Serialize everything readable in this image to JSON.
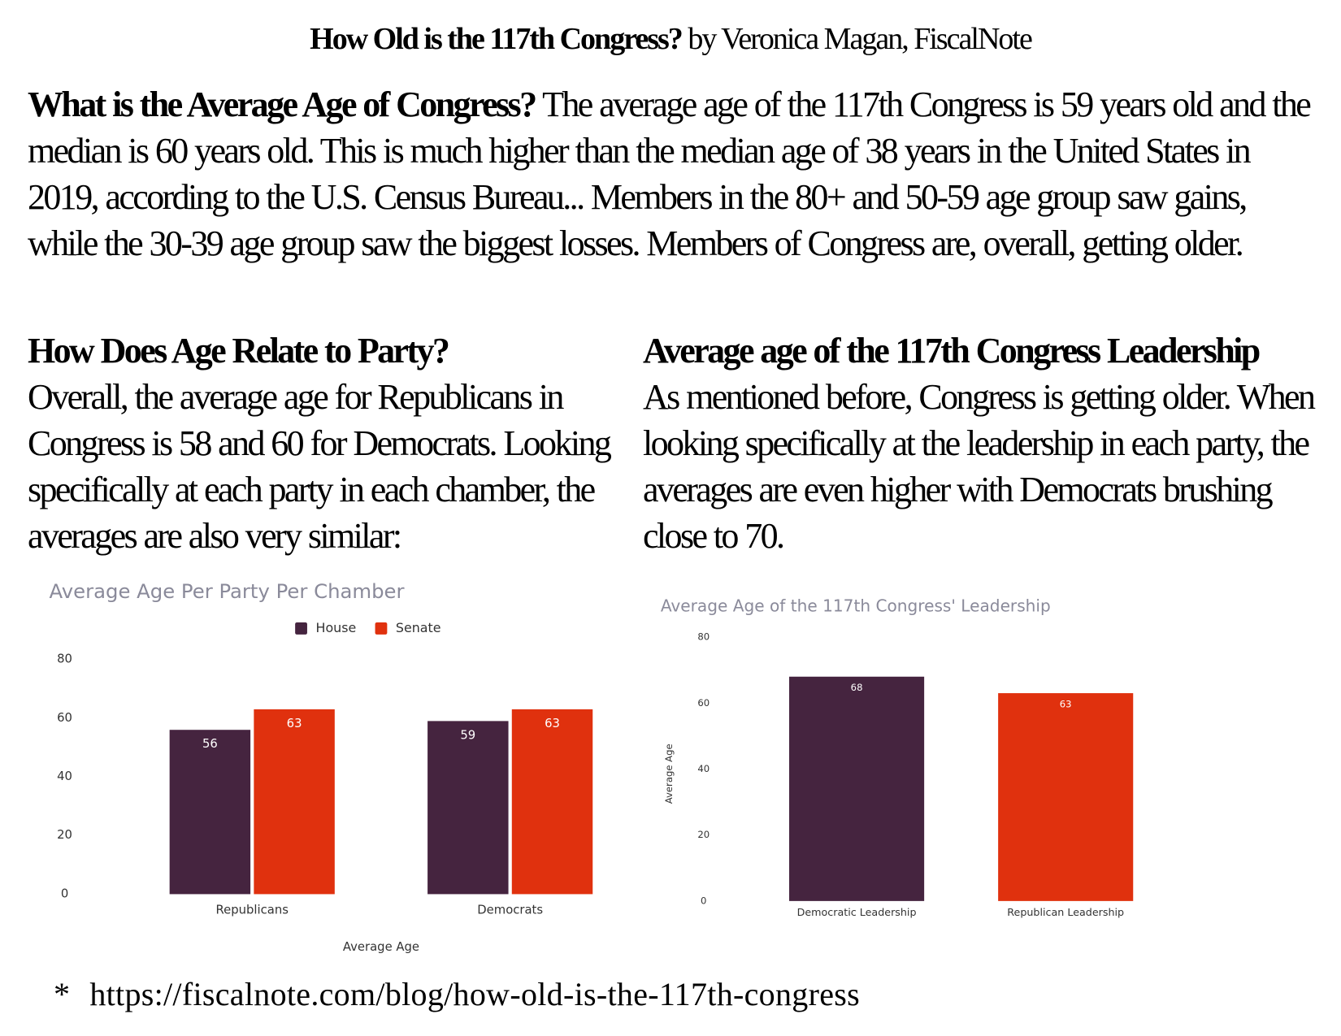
{
  "title": "How Old is the 117th Congress?",
  "byline": "by Veronica Magan, FiscalNote",
  "sections": [
    {
      "heading": "What is the Average Age of Congress?",
      "text": "The average age of the 117th Congress is 59 years old and the median is 60 years old. This is much higher than the median age of 38 years in the United States in 2019, according to the U.S. Census Bureau...  Members in the 80+ and 50-59 age group saw gains, while the 30-39 age group saw the biggest losses. Members of Congress are, overall, getting older."
    },
    {
      "heading": "How Does Age Relate to Party?",
      "text": "Overall, the average age for Republicans in Congress is 58 and 60 for Democrats. Looking specifically at each party in each chamber, the averages are also very similar:"
    },
    {
      "heading": "Average age of the 117th Congress Leadership",
      "text": "As mentioned before, Congress is getting older. When looking specifically at the leadership in each party, the averages are even higher with Democrats brushing close to 70."
    }
  ],
  "chart_data": [
    {
      "type": "bar",
      "title": "Average Age Per Party Per Chamber",
      "x_label": "Average Age",
      "categories": [
        "Republicans",
        "Democrats"
      ],
      "series": [
        {
          "name": "House",
          "color": "#45243f",
          "values": [
            56,
            59
          ]
        },
        {
          "name": "Senate",
          "color": "#e0310e",
          "values": [
            63,
            63
          ]
        }
      ],
      "ylim": [
        0,
        80
      ],
      "yticks": [
        0,
        20,
        40,
        60,
        80
      ],
      "grid": false,
      "legend": "top"
    },
    {
      "type": "bar",
      "title": "Average Age of the 117th Congress' Leadership",
      "y_label": "Average Age",
      "categories": [
        "Democratic Leadership",
        "Republican Leadership"
      ],
      "values": [
        68,
        63
      ],
      "colors": [
        "#45243f",
        "#e0310e"
      ],
      "ylim": [
        0,
        80
      ],
      "yticks": [
        0,
        20,
        40,
        60,
        80
      ],
      "grid": false
    }
  ],
  "footnote": {
    "marker": "*",
    "url": "https://fiscalnote.com/blog/how-old-is-the-117th-congress"
  }
}
